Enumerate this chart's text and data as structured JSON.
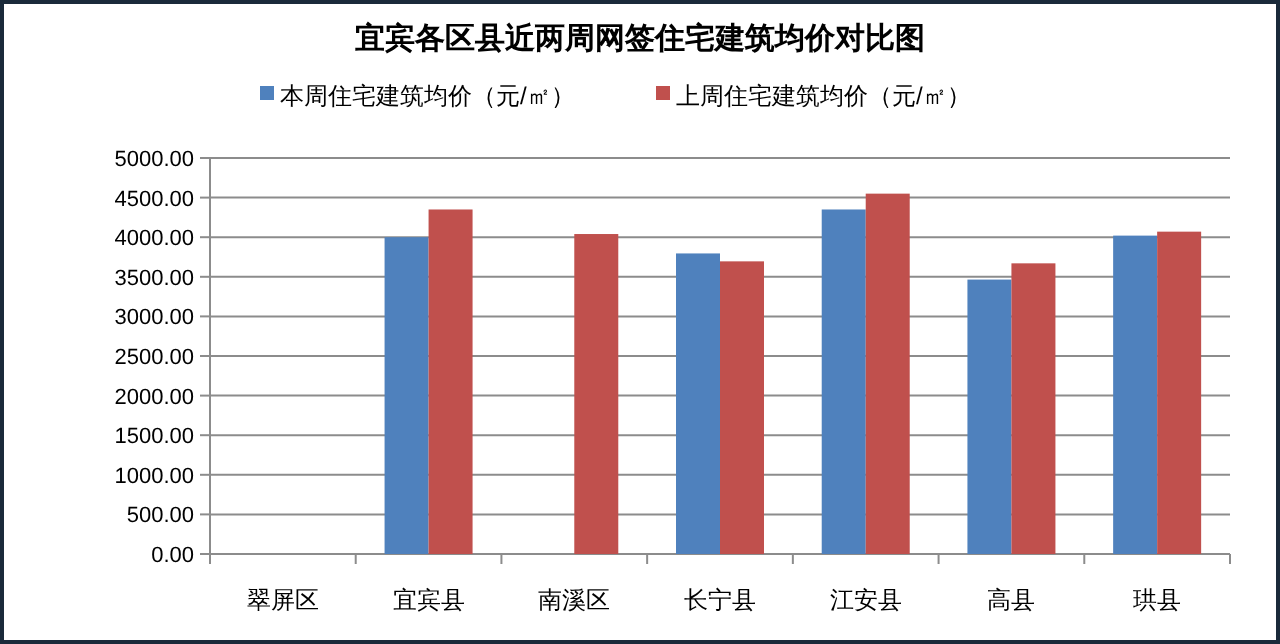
{
  "chart_data": {
    "type": "bar",
    "title": "宜宾各区县近两周网签住宅建筑均价对比图",
    "categories": [
      "翠屏区",
      "宜宾县",
      "南溪区",
      "长宁县",
      "江安县",
      "高县",
      "珙县"
    ],
    "series": [
      {
        "name": "本周住宅建筑均价（元/㎡）",
        "color": "#4f81bd",
        "values": [
          null,
          4000,
          null,
          3795,
          4350,
          3465,
          4020
        ]
      },
      {
        "name": "上周住宅建筑均价（元/㎡）",
        "color": "#c0504d",
        "values": [
          null,
          4350,
          4040,
          3695,
          4550,
          3670,
          4070
        ]
      }
    ],
    "ylim": [
      0,
      5000
    ],
    "yticks": [
      {
        "value": 0,
        "label": "0.00"
      },
      {
        "value": 500,
        "label": "500.00"
      },
      {
        "value": 1000,
        "label": "1000.00"
      },
      {
        "value": 1500,
        "label": "1500.00"
      },
      {
        "value": 2000,
        "label": "2000.00"
      },
      {
        "value": 2500,
        "label": "2500.00"
      },
      {
        "value": 3000,
        "label": "3000.00"
      },
      {
        "value": 3500,
        "label": "3500.00"
      },
      {
        "value": 4000,
        "label": "4000.00"
      },
      {
        "value": 4500,
        "label": "4500.00"
      },
      {
        "value": 5000,
        "label": "5000.00"
      }
    ],
    "grid": "y",
    "legend": "top"
  }
}
